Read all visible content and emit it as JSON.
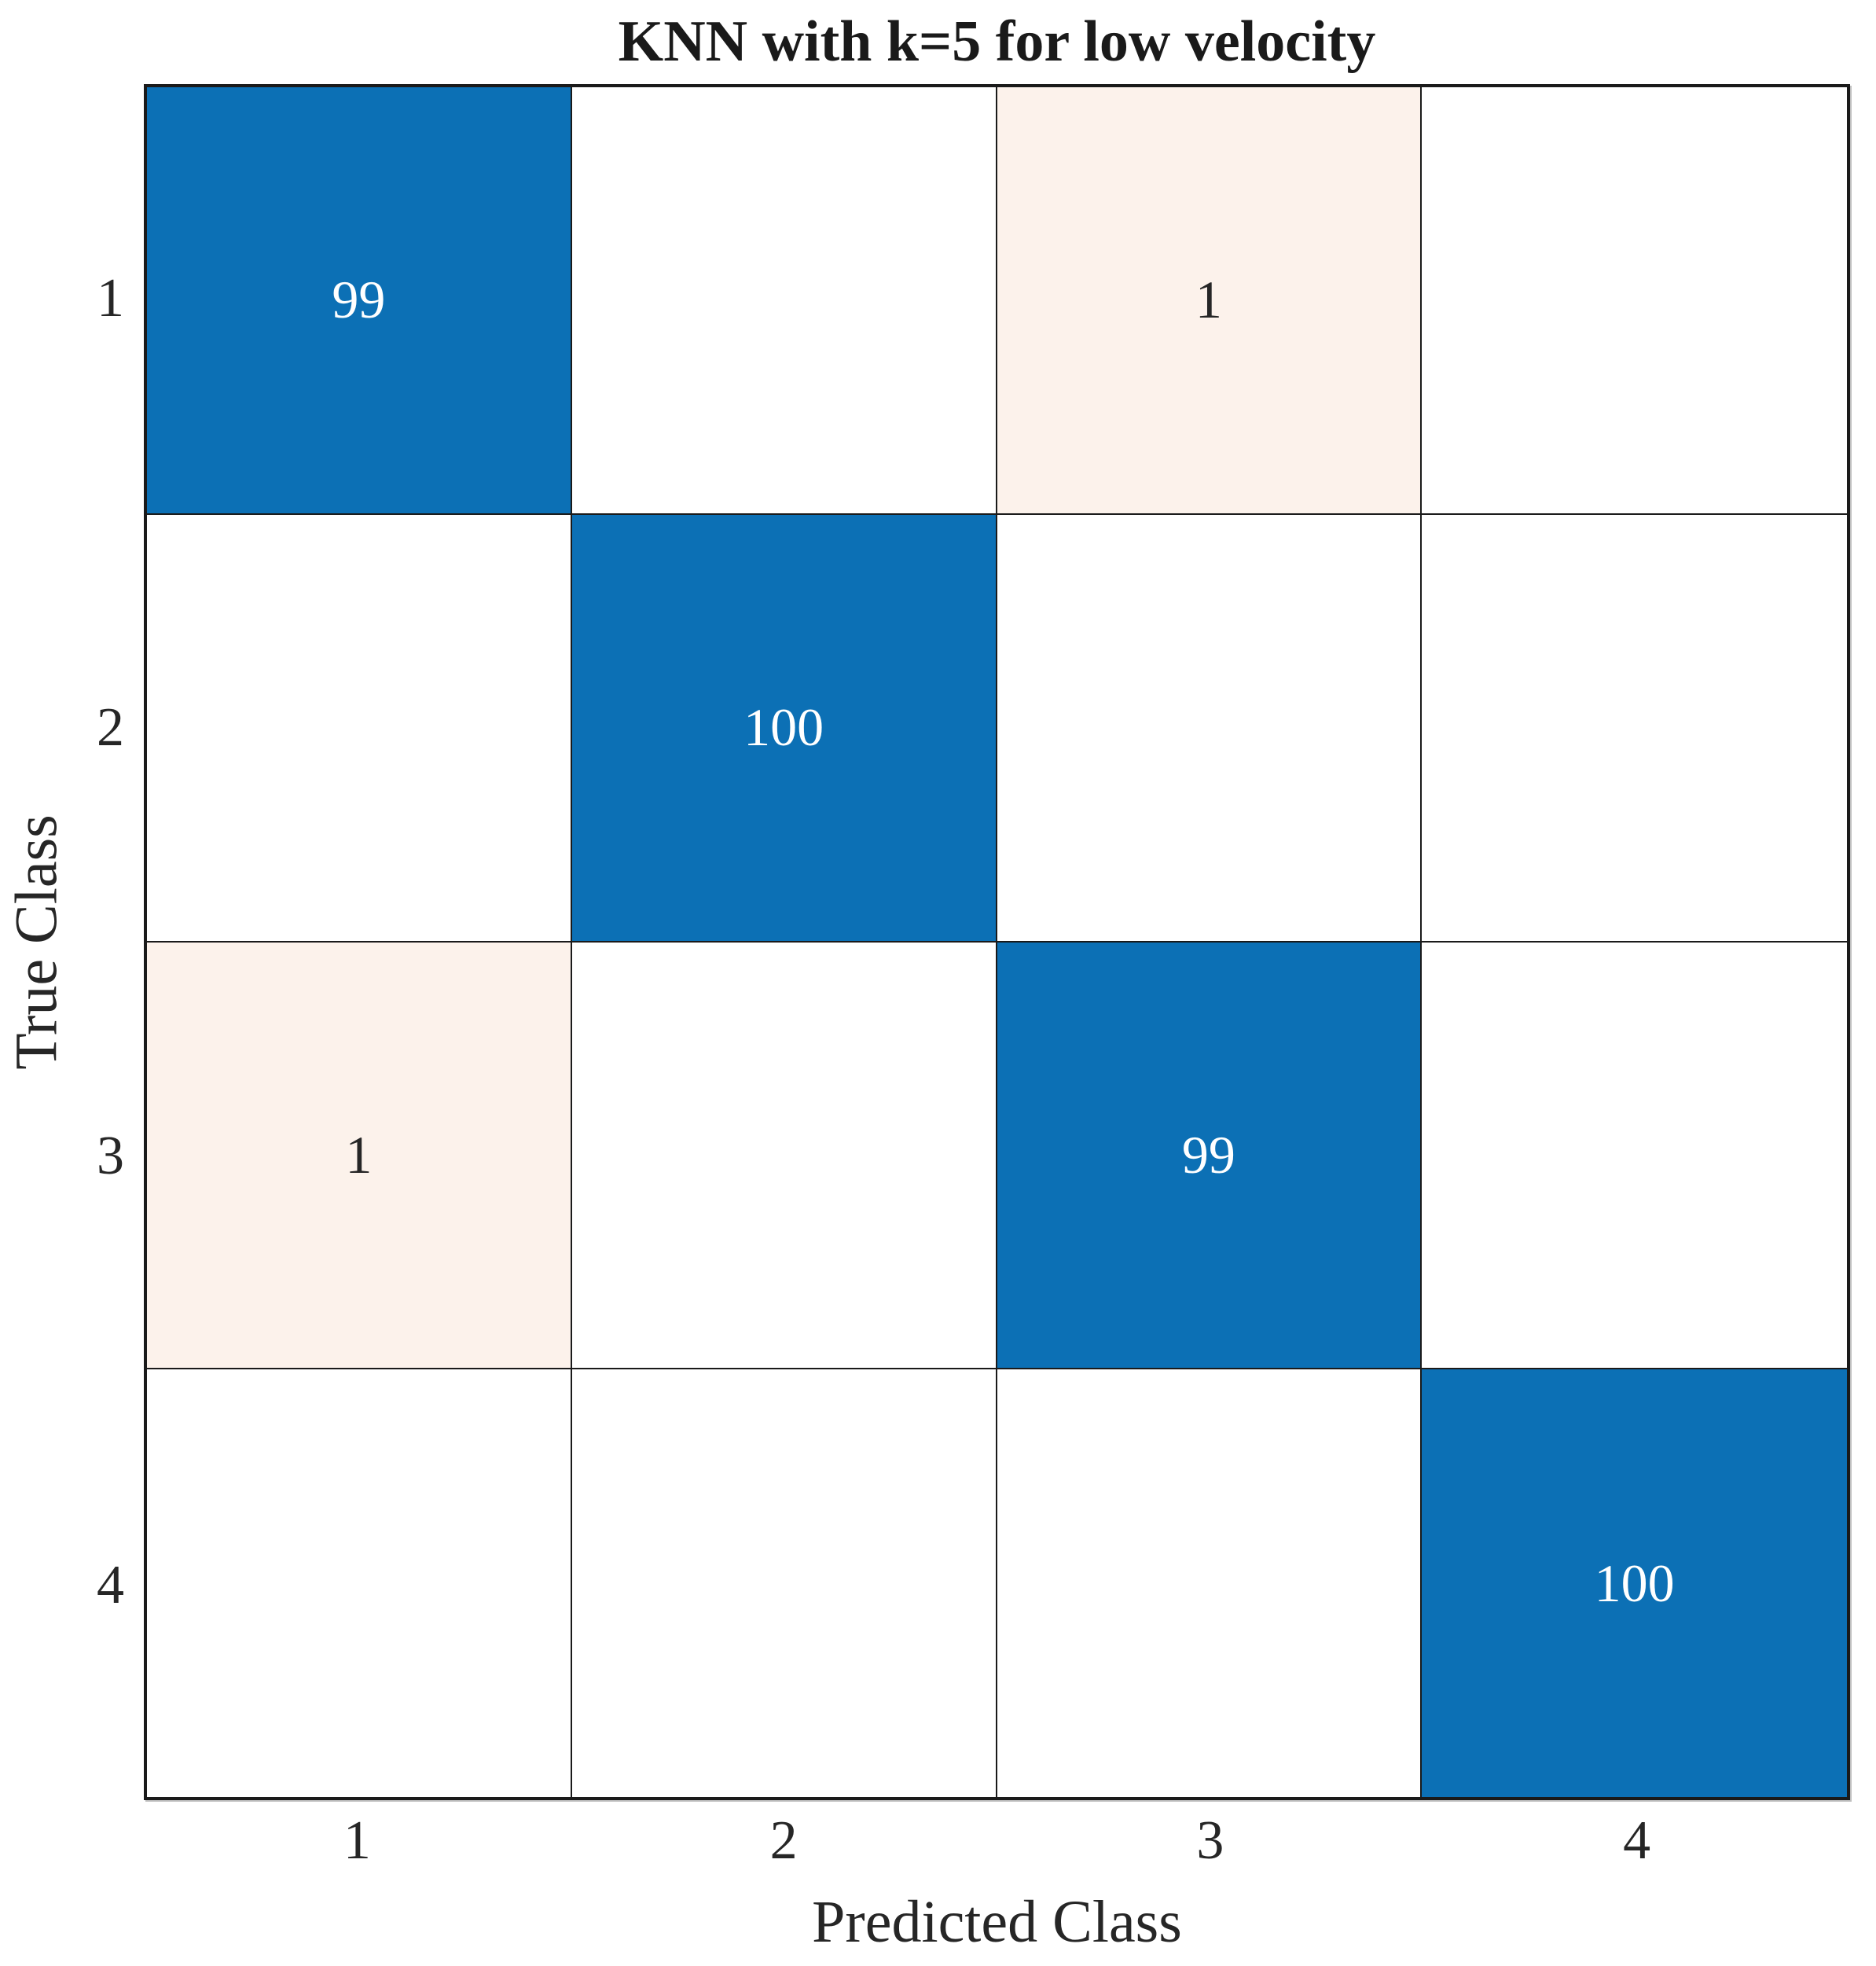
{
  "chart_data": {
    "type": "heatmap",
    "subtype": "confusion-matrix",
    "title": "KNN with k=5 for low velocity",
    "xlabel": "Predicted Class",
    "ylabel": "True Class",
    "x_tick_labels": [
      "1",
      "2",
      "3",
      "4"
    ],
    "y_tick_labels": [
      "1",
      "2",
      "3",
      "4"
    ],
    "matrix": [
      [
        99,
        0,
        1,
        0
      ],
      [
        0,
        100,
        0,
        0
      ],
      [
        1,
        0,
        99,
        0
      ],
      [
        0,
        0,
        0,
        100
      ]
    ],
    "zero_cells_shown_blank": true,
    "legend": "none",
    "grid": true,
    "colors": {
      "diagonal_fill": "#0c70b5",
      "offdiagonal_nonzero_fill": "#fcf2eb",
      "zero_fill": "#ffffff",
      "diagonal_text": "#ffffff",
      "offdiagonal_text": "#262626",
      "grid_line": "#1a1a1a",
      "axis_text": "#262626",
      "title_text": "#1a1a1a"
    }
  }
}
